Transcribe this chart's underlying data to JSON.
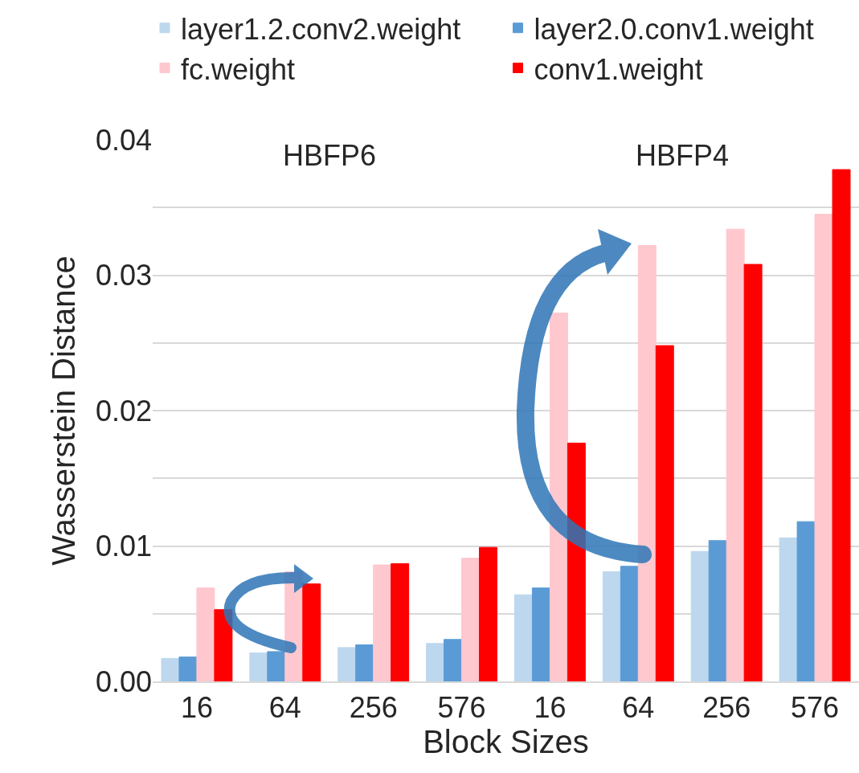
{
  "chart_data": {
    "type": "bar",
    "xlabel": "Block Sizes",
    "ylabel": "Wasserstein Distance",
    "annotations": [
      "HBFP6",
      "HBFP4"
    ],
    "categories": [
      "16",
      "64",
      "256",
      "576",
      "16",
      "64",
      "256",
      "576"
    ],
    "series": [
      {
        "name": "layer1.2.conv2.weight",
        "color": "#bdd7ee",
        "values": [
          0.0017,
          0.0021,
          0.0025,
          0.0028,
          0.0064,
          0.0081,
          0.0096,
          0.0106
        ]
      },
      {
        "name": "layer2.0.conv1.weight",
        "color": "#5b9bd5",
        "values": [
          0.0018,
          0.0022,
          0.0027,
          0.0031,
          0.0069,
          0.0085,
          0.0104,
          0.0118
        ]
      },
      {
        "name": "fc.weight",
        "color": "#ffc7ce",
        "values": [
          0.0069,
          0.0081,
          0.0086,
          0.0091,
          0.0272,
          0.0322,
          0.0334,
          0.0345
        ]
      },
      {
        "name": "conv1.weight",
        "color": "#ff0000",
        "values": [
          0.0053,
          0.0072,
          0.0087,
          0.0099,
          0.0176,
          0.0248,
          0.0308,
          0.0378
        ]
      }
    ],
    "ylim": [
      0,
      0.04
    ],
    "yticks": [
      {
        "value": 0,
        "label": "0.00"
      },
      {
        "value": 0.005,
        "label": null
      },
      {
        "value": 0.01,
        "label": "0.01"
      },
      {
        "value": 0.015,
        "label": null
      },
      {
        "value": 0.02,
        "label": "0.02"
      },
      {
        "value": 0.025,
        "label": null
      },
      {
        "value": 0.03,
        "label": "0.03"
      },
      {
        "value": 0.035,
        "label": null
      },
      {
        "value": 0.04,
        "label": "0.04"
      }
    ],
    "grid": "y",
    "legend": "top"
  }
}
